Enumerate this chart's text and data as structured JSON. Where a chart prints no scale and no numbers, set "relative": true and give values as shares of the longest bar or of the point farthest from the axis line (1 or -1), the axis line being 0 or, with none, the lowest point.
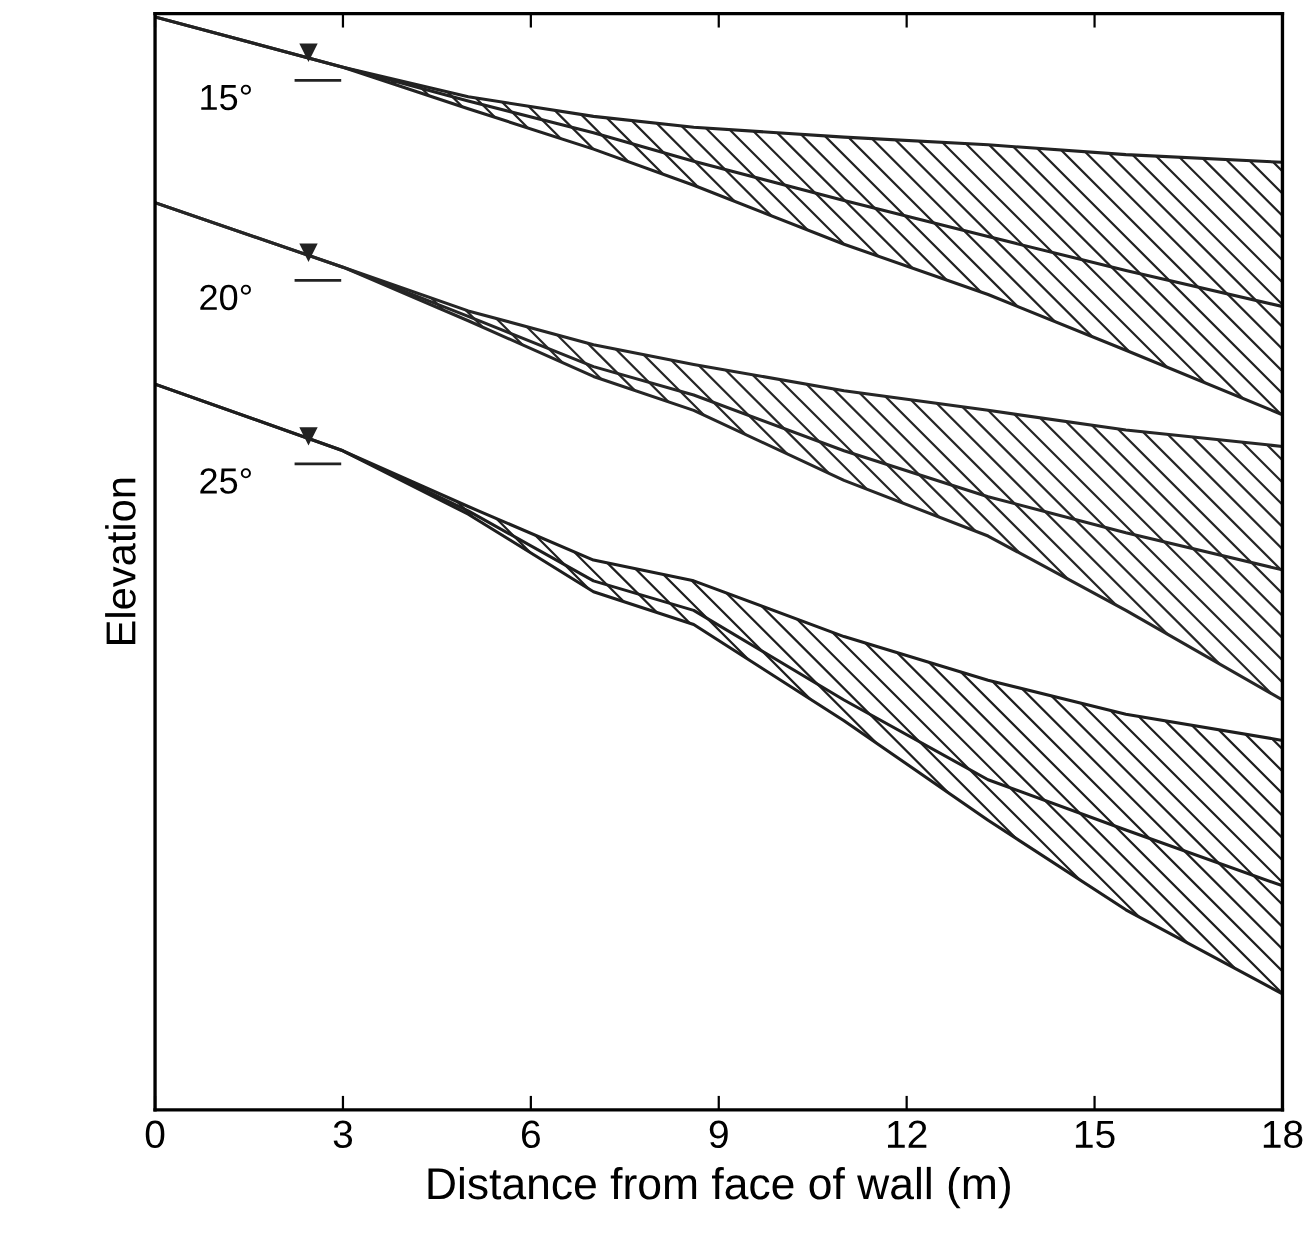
{
  "chart_data": {
    "type": "line",
    "relative": true,
    "xlabel": "Distance from face of wall (m)",
    "ylabel": "Elevation",
    "x": [
      0,
      3,
      5,
      7,
      8.6,
      11,
      13.3,
      15.5,
      18
    ],
    "xlim": [
      0,
      18
    ],
    "xticks": [
      0,
      3,
      6,
      9,
      12,
      15,
      18
    ],
    "grid": false,
    "legend": false,
    "marker": "none",
    "line_style": "solid",
    "tick_labels": "x",
    "series": [
      {
        "color": "#222222",
        "values": [
          1.0,
          0.954,
          0.923,
          0.894,
          0.868,
          0.832,
          0.799,
          0.768,
          0.735
        ],
        "upper": [
          1.0,
          0.954,
          0.927,
          0.909,
          0.899,
          0.89,
          0.883,
          0.874,
          0.867
        ],
        "lower": [
          1.0,
          0.954,
          0.916,
          0.879,
          0.846,
          0.792,
          0.746,
          0.695,
          0.636
        ]
      },
      {
        "color": "#262626",
        "values": [
          0.83,
          0.771,
          0.726,
          0.68,
          0.654,
          0.603,
          0.561,
          0.528,
          0.494
        ],
        "upper": [
          0.83,
          0.771,
          0.731,
          0.7,
          0.682,
          0.658,
          0.64,
          0.622,
          0.607
        ],
        "lower": [
          0.83,
          0.771,
          0.722,
          0.671,
          0.64,
          0.576,
          0.525,
          0.457,
          0.375
        ]
      },
      {
        "color": "#1e1e1e",
        "values": [
          0.664,
          0.603,
          0.548,
          0.484,
          0.457,
          0.375,
          0.302,
          0.256,
          0.205
        ],
        "upper": [
          0.664,
          0.603,
          0.552,
          0.503,
          0.484,
          0.433,
          0.393,
          0.362,
          0.338
        ],
        "lower": [
          0.664,
          0.603,
          0.545,
          0.474,
          0.444,
          0.356,
          0.265,
          0.183,
          0.106
        ]
      }
    ],
    "annotations": [
      "15°",
      "20°",
      "25°"
    ]
  }
}
